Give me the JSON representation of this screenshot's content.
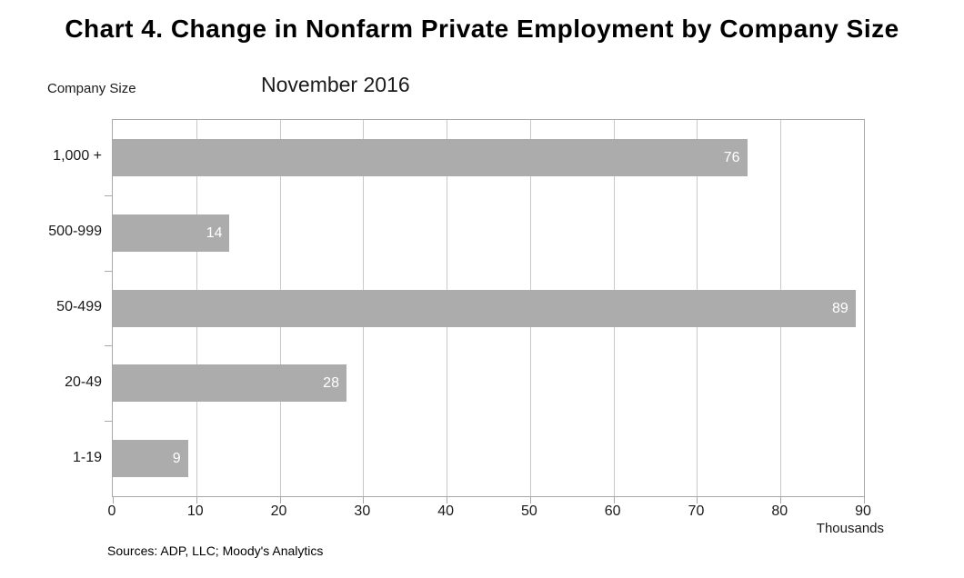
{
  "page": {
    "title": "Chart 4. Change in Nonfarm Private Employment by Company Size",
    "subtitle": "November 2016",
    "axis_title": "Company Size",
    "unit_label": "Thousands",
    "source": "Sources: ADP, LLC; Moody's Analytics"
  },
  "colors": {
    "bar": "#acacac",
    "gridline": "#c9c9c9",
    "axis": "#a9a9a9",
    "value_label": "#ffffff",
    "text": "#1a1a1a"
  },
  "chart_data": {
    "type": "bar",
    "orientation": "horizontal",
    "title": "Chart 4. Change in Nonfarm Private Employment by Company Size",
    "subtitle": "November 2016",
    "categories": [
      "1,000 +",
      "500-999",
      "50-499",
      "20-49",
      "1-19"
    ],
    "values": [
      76,
      14,
      89,
      28,
      9
    ],
    "xlabel": "Thousands",
    "ylabel": "Company Size",
    "xlim": [
      0,
      90
    ],
    "xticks": [
      0,
      10,
      20,
      30,
      40,
      50,
      60,
      70,
      80,
      90
    ],
    "grid": true,
    "legend": false,
    "value_labels_position": "inside-end",
    "source": "Sources: ADP, LLC; Moody's Analytics"
  }
}
